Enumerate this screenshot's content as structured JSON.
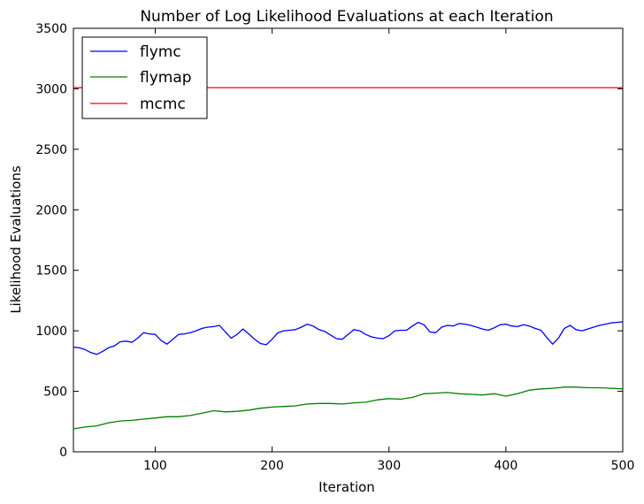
{
  "chart_data": {
    "type": "line",
    "title": "Number of Log Likelihood Evaluations at each Iteration",
    "xlabel": "Iteration",
    "ylabel": "Likelihood Evaluations",
    "xlim": [
      30,
      500
    ],
    "ylim": [
      0,
      3500
    ],
    "xticks": [
      100,
      200,
      300,
      400,
      500
    ],
    "yticks": [
      0,
      500,
      1000,
      1500,
      2000,
      2500,
      3000,
      3500
    ],
    "grid": false,
    "legend_position": "top-left",
    "series": [
      {
        "name": "flymc",
        "color": "#0000ff",
        "x": [
          30,
          35,
          40,
          45,
          50,
          55,
          60,
          65,
          70,
          75,
          80,
          85,
          90,
          95,
          100,
          105,
          110,
          115,
          120,
          125,
          130,
          135,
          140,
          145,
          150,
          155,
          160,
          165,
          170,
          175,
          180,
          185,
          190,
          195,
          200,
          205,
          210,
          215,
          220,
          225,
          230,
          235,
          240,
          245,
          250,
          255,
          260,
          265,
          270,
          275,
          280,
          285,
          290,
          295,
          300,
          305,
          310,
          315,
          320,
          325,
          330,
          335,
          340,
          345,
          350,
          355,
          360,
          365,
          370,
          375,
          380,
          385,
          390,
          395,
          400,
          405,
          410,
          415,
          420,
          425,
          430,
          435,
          440,
          445,
          450,
          455,
          460,
          465,
          470,
          475,
          480,
          485,
          490,
          495,
          500
        ],
        "y": [
          865,
          860,
          845,
          820,
          805,
          830,
          860,
          875,
          910,
          915,
          905,
          940,
          985,
          975,
          970,
          920,
          890,
          930,
          970,
          975,
          985,
          1000,
          1020,
          1030,
          1035,
          1045,
          990,
          940,
          970,
          1015,
          975,
          930,
          895,
          885,
          930,
          985,
          1000,
          1005,
          1010,
          1030,
          1055,
          1040,
          1010,
          995,
          965,
          935,
          930,
          970,
          1010,
          1000,
          970,
          950,
          940,
          935,
          960,
          1000,
          1005,
          1005,
          1040,
          1070,
          1050,
          990,
          985,
          1030,
          1045,
          1040,
          1060,
          1055,
          1045,
          1030,
          1015,
          1005,
          1025,
          1050,
          1055,
          1040,
          1035,
          1050,
          1040,
          1020,
          1005,
          945,
          890,
          940,
          1020,
          1045,
          1010,
          1000,
          1015,
          1030,
          1045,
          1055,
          1065,
          1070,
          1075
        ]
      },
      {
        "name": "flymap",
        "color": "#008000",
        "x": [
          30,
          40,
          50,
          60,
          70,
          80,
          90,
          100,
          110,
          120,
          130,
          140,
          150,
          160,
          170,
          180,
          190,
          200,
          210,
          220,
          230,
          240,
          250,
          260,
          270,
          280,
          290,
          300,
          310,
          320,
          330,
          340,
          350,
          360,
          370,
          380,
          390,
          400,
          410,
          420,
          430,
          440,
          450,
          460,
          470,
          480,
          490,
          500
        ],
        "y": [
          190,
          205,
          215,
          240,
          255,
          260,
          270,
          280,
          290,
          290,
          300,
          320,
          340,
          330,
          335,
          345,
          360,
          370,
          375,
          380,
          395,
          400,
          400,
          395,
          405,
          410,
          430,
          440,
          435,
          450,
          480,
          485,
          490,
          480,
          475,
          470,
          480,
          460,
          480,
          510,
          520,
          525,
          535,
          535,
          530,
          530,
          525,
          520
        ]
      },
      {
        "name": "mcmc",
        "color": "#ff0000",
        "x": [
          30,
          500
        ],
        "y": [
          3010,
          3010
        ]
      }
    ]
  }
}
